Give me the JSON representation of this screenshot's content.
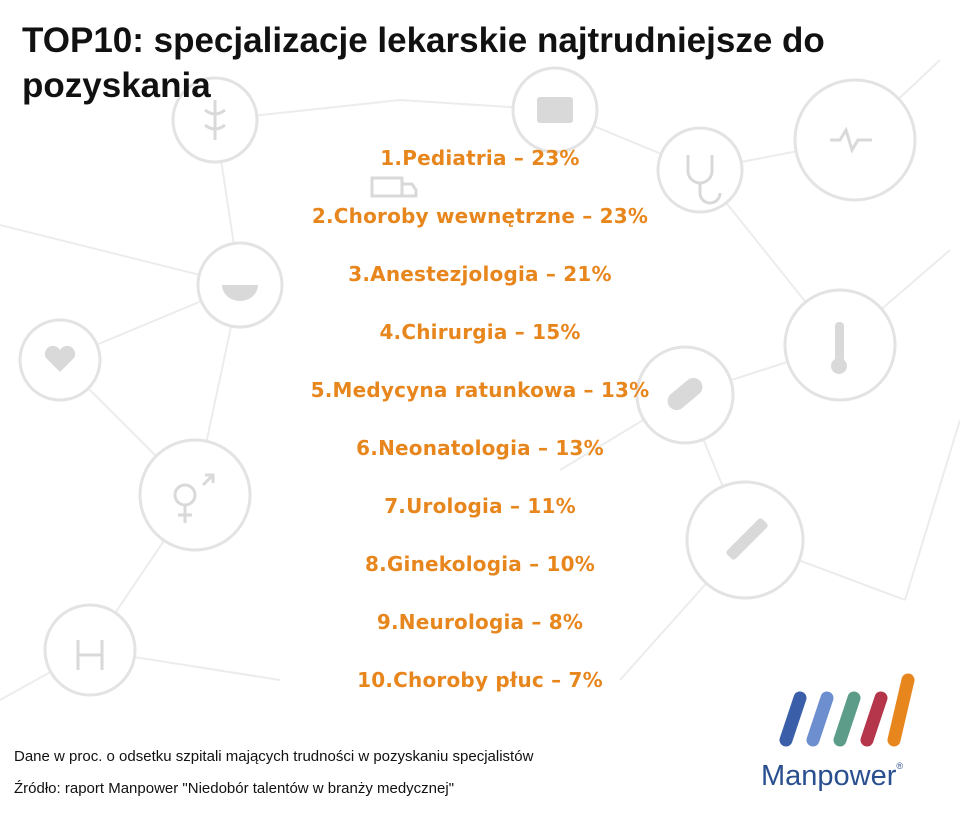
{
  "title": "TOP10: specjalizacje lekarskie najtrudniejsze do pozyskania",
  "chart_data": {
    "type": "table",
    "title": "TOP10: specjalizacje lekarskie najtrudniejsze do pozyskania",
    "items": [
      {
        "rank": 1,
        "label": "Pediatria",
        "value": 23
      },
      {
        "rank": 2,
        "label": "Choroby wewnętrzne",
        "value": 23
      },
      {
        "rank": 3,
        "label": "Anestezjologia",
        "value": 21
      },
      {
        "rank": 4,
        "label": "Chirurgia",
        "value": 15
      },
      {
        "rank": 5,
        "label": "Medycyna ratunkowa",
        "value": 13
      },
      {
        "rank": 6,
        "label": "Neonatologia",
        "value": 13
      },
      {
        "rank": 7,
        "label": "Urologia",
        "value": 11
      },
      {
        "rank": 8,
        "label": "Ginekologia",
        "value": 10
      },
      {
        "rank": 9,
        "label": "Neurologia",
        "value": 8
      },
      {
        "rank": 10,
        "label": "Choroby płuc",
        "value": 7
      }
    ],
    "unit": "%",
    "accent_color": "#e8861e"
  },
  "footnotes": {
    "note": "Dane w proc. o odsetku szpitali mających trudności w pozyskaniu specjalistów",
    "source": "Źródło: raport Manpower \"Niedobór talentów w branży medycznej\""
  },
  "logo": {
    "text": "Manpower",
    "mark": "®",
    "stripe_colors": [
      "#3a5ea8",
      "#6d8fcf",
      "#5e9c8a",
      "#b5364a",
      "#e8861e"
    ]
  },
  "background_icons": [
    "medkit-icon",
    "caduceus-icon",
    "heartbeat-icon",
    "stethoscope-icon",
    "ambulance-icon",
    "mortar-pestle-icon",
    "heart-monitor-icon",
    "thermometer-icon",
    "pill-icon",
    "gender-symbols-icon",
    "syringe-icon",
    "handshake-icon"
  ]
}
